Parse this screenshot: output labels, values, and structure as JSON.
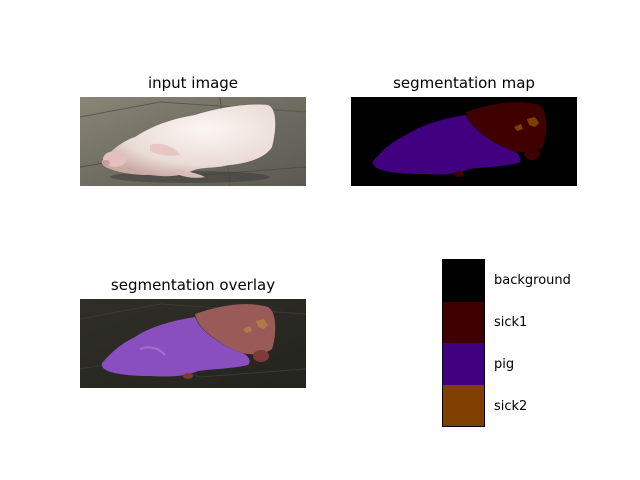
{
  "panels": {
    "input_title": "input image",
    "map_title": "segmentation map",
    "overlay_title": "segmentation overlay"
  },
  "legend": {
    "items": [
      {
        "label": "background",
        "color": "#000000"
      },
      {
        "label": "sick1",
        "color": "#3f0000"
      },
      {
        "label": "pig",
        "color": "#40007f"
      },
      {
        "label": "sick2",
        "color": "#7f3f00"
      }
    ]
  }
}
